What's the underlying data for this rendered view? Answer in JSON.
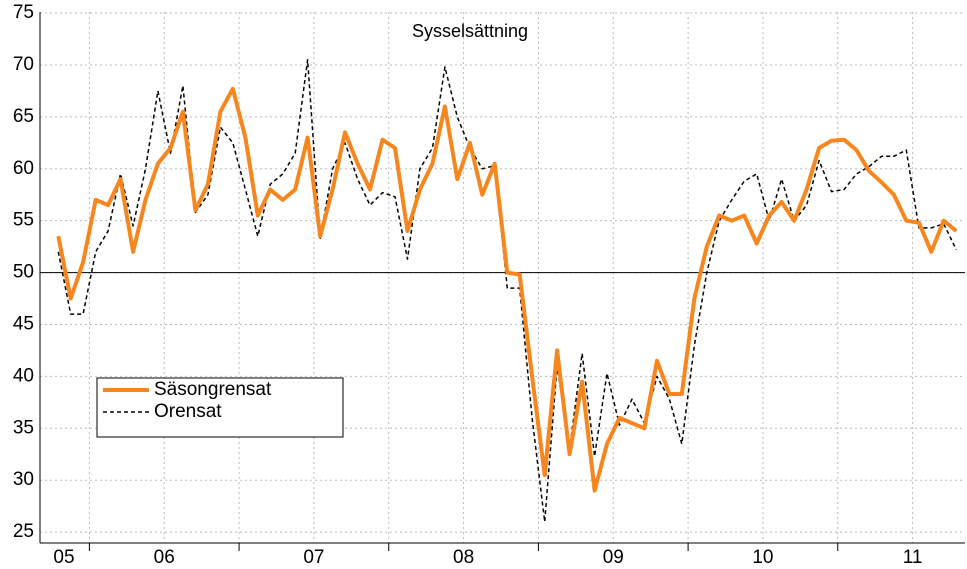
{
  "chart_data": {
    "type": "line",
    "title": "Sysselsättning",
    "x": [
      2005.792,
      2005.875,
      2005.958,
      2006.042,
      2006.125,
      2006.208,
      2006.292,
      2006.375,
      2006.458,
      2006.542,
      2006.625,
      2006.708,
      2006.792,
      2006.875,
      2006.958,
      2007.042,
      2007.125,
      2007.208,
      2007.292,
      2007.375,
      2007.458,
      2007.542,
      2007.625,
      2007.708,
      2007.792,
      2007.875,
      2007.958,
      2008.042,
      2008.125,
      2008.208,
      2008.292,
      2008.375,
      2008.458,
      2008.542,
      2008.625,
      2008.708,
      2008.792,
      2008.875,
      2008.958,
      2009.042,
      2009.125,
      2009.208,
      2009.292,
      2009.375,
      2009.458,
      2009.542,
      2009.625,
      2009.708,
      2009.792,
      2009.875,
      2009.958,
      2010.042,
      2010.125,
      2010.208,
      2010.292,
      2010.375,
      2010.458,
      2010.542,
      2010.625,
      2010.708,
      2010.792,
      2010.875,
      2010.958,
      2011.042,
      2011.125,
      2011.208,
      2011.292,
      2011.375,
      2011.458,
      2011.542,
      2011.625,
      2011.708,
      2011.792
    ],
    "series": [
      {
        "name": "Säsongrensat",
        "color": "#f7861e",
        "width": 4,
        "dash": false,
        "values": [
          53.5,
          47.5,
          51,
          57,
          56.5,
          59,
          52,
          57,
          60.5,
          62,
          65.5,
          56,
          58.5,
          65.5,
          67.7,
          63,
          55.5,
          58,
          57,
          58,
          63,
          53.5,
          58,
          63.5,
          60.5,
          58,
          62.8,
          62,
          54,
          58,
          60.5,
          66,
          59,
          62.5,
          57.5,
          60.5,
          50,
          49.8,
          40,
          30.5,
          42.5,
          32.5,
          39.5,
          29,
          33.5,
          36,
          35.5,
          35,
          41.5,
          38.3,
          38.3,
          47.5,
          52.5,
          55.5,
          55,
          55.5,
          52.8,
          55.5,
          56.8,
          55,
          58,
          62,
          62.7,
          62.8,
          61.8,
          59.8,
          58.7,
          57.5,
          55,
          54.8,
          52,
          55,
          54
        ]
      },
      {
        "name": "Orensat",
        "color": "#000000",
        "width": 1.5,
        "dash": true,
        "values": [
          52,
          46,
          46,
          52,
          54,
          59.5,
          54.5,
          60,
          67.5,
          61.5,
          68,
          55.8,
          57.5,
          64,
          62.5,
          58,
          53.5,
          58.5,
          59.5,
          61.5,
          70.5,
          53.3,
          60,
          62.5,
          59,
          56.5,
          57.7,
          57.3,
          51.3,
          60,
          62,
          69.8,
          65,
          62,
          60,
          60.3,
          48.5,
          48.5,
          36,
          26,
          41,
          33,
          42.2,
          32.3,
          40.3,
          35.3,
          37.8,
          35.5,
          40,
          37.8,
          33.5,
          43,
          50,
          55,
          57,
          58.8,
          59.5,
          55,
          59,
          55,
          56.5,
          60.8,
          57.8,
          58,
          59.5,
          60.2,
          61.2,
          61.2,
          61.8,
          54.3,
          54.3,
          54.7,
          52.2
        ]
      }
    ],
    "xlim": [
      2005.67,
      2011.85
    ],
    "xticks": [
      2006,
      2007,
      2008,
      2009,
      2010,
      2011
    ],
    "xgrid": [
      2006,
      2006.5,
      2007,
      2007.5,
      2008,
      2008.5,
      2009,
      2009.5,
      2010,
      2010.5,
      2011,
      2011.5
    ],
    "year_labels": [
      {
        "value": 2005.83,
        "label": "05"
      },
      {
        "value": 2006.5,
        "label": "06"
      },
      {
        "value": 2007.5,
        "label": "07"
      },
      {
        "value": 2008.5,
        "label": "08"
      },
      {
        "value": 2009.5,
        "label": "09"
      },
      {
        "value": 2010.5,
        "label": "10"
      },
      {
        "value": 2011.5,
        "label": "11"
      }
    ],
    "ylim": [
      23.95,
      75.1
    ],
    "yticks": [
      25,
      30,
      35,
      40,
      45,
      50,
      55,
      60,
      65,
      70,
      75
    ],
    "reference_line": 50,
    "grid": true,
    "legend": "lower left"
  }
}
